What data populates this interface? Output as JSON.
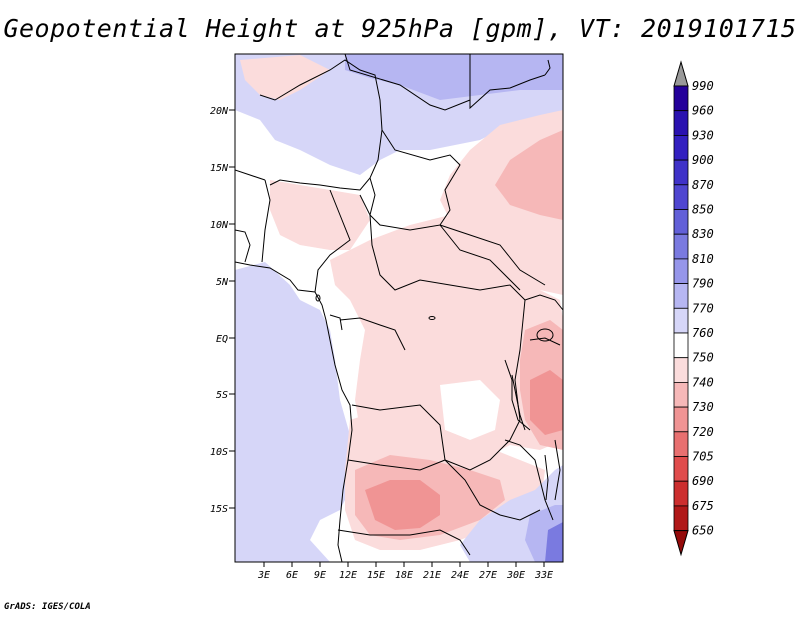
{
  "title": "Geopotential Height at 925hPa [gpm], VT: 2019101715",
  "credit": "GrADS: IGES/COLA",
  "map": {
    "lat_labels": [
      "20N",
      "15N",
      "10N",
      "5N",
      "EQ",
      "5S",
      "10S",
      "15S"
    ],
    "lon_labels": [
      "3E",
      "6E",
      "9E",
      "12E",
      "15E",
      "18E",
      "21E",
      "24E",
      "27E",
      "30E",
      "33E"
    ]
  },
  "colorbar": {
    "levels": [
      "990",
      "960",
      "930",
      "900",
      "870",
      "850",
      "830",
      "810",
      "790",
      "770",
      "760",
      "750",
      "740",
      "730",
      "720",
      "705",
      "690",
      "675",
      "650"
    ],
    "colors": [
      "#24009a",
      "#2a12b0",
      "#3320c0",
      "#3f32c8",
      "#4f46d0",
      "#6260d8",
      "#7a7ae0",
      "#9696ea",
      "#b6b6f2",
      "#d6d6f8",
      "#ffffff",
      "#fbdcdc",
      "#f6b8b8",
      "#f09494",
      "#e87070",
      "#e04c4c",
      "#cc2e2e",
      "#b01818",
      "#940a0a"
    ],
    "upper_arrow_color": "#999999"
  }
}
